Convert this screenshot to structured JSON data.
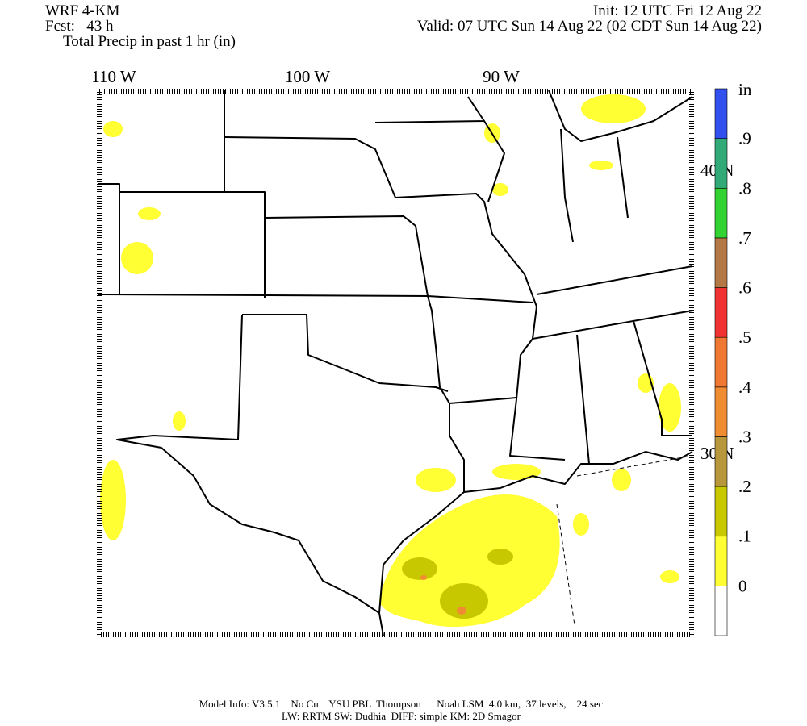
{
  "header": {
    "model": "WRF 4-KM",
    "forecast": "Fcst:   43 h",
    "field": "Total Precip in past 1 hr (in)",
    "init": "Init: 12 UTC Fri 12 Aug 22",
    "valid": "Valid: 07 UTC Sun 14 Aug 22 (02 CDT Sun 14 Aug 22)"
  },
  "map": {
    "longitude_labels": [
      "110 W",
      "100 W",
      "90 W"
    ],
    "latitude_labels": [
      "40 N",
      "30 N"
    ]
  },
  "colorbar": {
    "unit": "in",
    "levels": [
      0,
      {
        "value": 0.1,
        "label": ".1"
      },
      {
        "value": 0.2,
        "label": ".2"
      },
      {
        "value": 0.3,
        "label": ".3"
      },
      {
        "value": 0.4,
        "label": ".4"
      },
      {
        "value": 0.5,
        "label": ".5"
      },
      {
        "value": 0.6,
        "label": ".6"
      },
      {
        "value": 0.7,
        "label": ".7"
      },
      {
        "value": 0.8,
        "label": ".8"
      },
      {
        "value": 0.9,
        "label": ".9"
      }
    ],
    "colors": [
      "#ffffff",
      "#ffff33",
      "#c8c800",
      "#b8963c",
      "#f08c32",
      "#f07832",
      "#f03232",
      "#b47846",
      "#32d232",
      "#32aa78",
      "#3250f0"
    ]
  },
  "footer": {
    "line1": "Model Info: V3.5.1    No Cu    YSU PBL  Thompson      Noah LSM  4.0 km,  37 levels,    24 sec",
    "line2": "LW: RRTM SW: Dudhia  DIFF: simple KM: 2D Smagor"
  }
}
